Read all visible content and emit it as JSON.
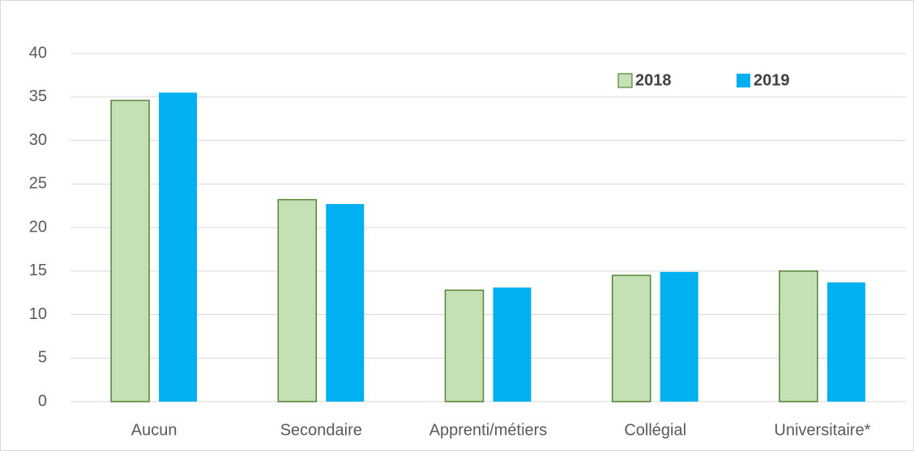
{
  "chart_data": {
    "type": "bar",
    "categories": [
      "Aucun",
      "Secondaire",
      "Apprenti/métiers",
      "Collégial",
      "Universitaire*"
    ],
    "series": [
      {
        "name": "2018",
        "color": "#c5e0b4",
        "values": [
          34.6,
          23.2,
          12.8,
          14.5,
          15.0
        ]
      },
      {
        "name": "2019",
        "color": "#00b0f0",
        "values": [
          35.5,
          22.7,
          13.1,
          14.9,
          13.7
        ]
      }
    ],
    "ylim": [
      0,
      40
    ],
    "yticks": [
      0,
      5,
      10,
      15,
      20,
      25,
      30,
      35,
      40
    ],
    "grid": true,
    "legend": "top-right"
  }
}
